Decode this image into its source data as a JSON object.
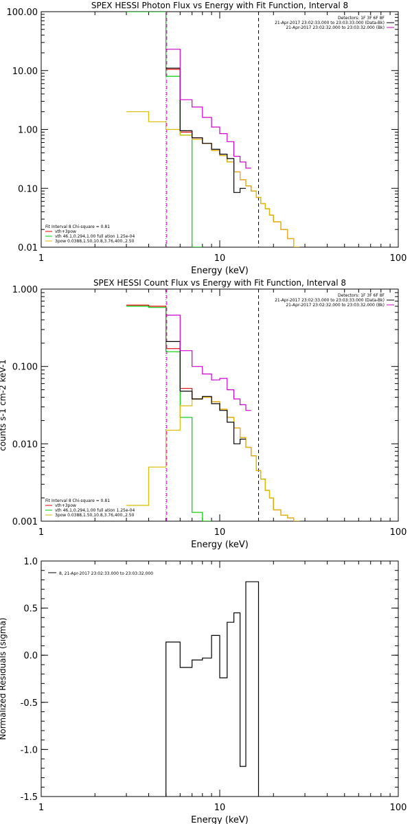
{
  "chart_data": [
    {
      "type": "line",
      "title": "SPEX HESSI Photon Flux vs Energy with Fit Function, Interval 8",
      "xlabel": "Energy (keV)",
      "ylabel": "",
      "xscale": "log",
      "yscale": "log",
      "xlim": [
        1,
        100
      ],
      "ylim": [
        0.01,
        100
      ],
      "xticks": [
        {
          "v": 1,
          "label": "1"
        },
        {
          "v": 10,
          "label": "10"
        },
        {
          "v": 100,
          "label": "100"
        }
      ],
      "yticks": [
        {
          "v": 0.01,
          "label": "0.01"
        },
        {
          "v": 0.1,
          "label": "0.10"
        },
        {
          "v": 1,
          "label": "1.00"
        },
        {
          "v": 10,
          "label": "10.00"
        },
        {
          "v": 100,
          "label": "100.00"
        }
      ],
      "edges": [
        3,
        4,
        5,
        6,
        7,
        8,
        9,
        10,
        11,
        12,
        13,
        14,
        15,
        16,
        17,
        18,
        19,
        20,
        22,
        24,
        26,
        28
      ],
      "vlines": [
        {
          "x": 5.0,
          "color": "#00aa00",
          "style": "dotted"
        },
        {
          "x": 5.05,
          "color": "#cc00cc",
          "style": "dashed"
        },
        {
          "x": 16.5,
          "color": "#000000",
          "style": "dashed"
        }
      ],
      "series": [
        {
          "name": "vth+3pow",
          "color": "#dd0000",
          "values": [
            null,
            null,
            10.5,
            0.9,
            0.72,
            0.58,
            0.44,
            0.36,
            0.28,
            0.19,
            0.14,
            0.11,
            0.09,
            0.07,
            0.055,
            0.045,
            0.035,
            0.027,
            0.02,
            0.014,
            0.01
          ]
        },
        {
          "name": "vth 46.1,0.294,1.00  full ation 1.25e-04",
          "color": "#00cc00",
          "values": [
            100,
            100,
            8.0,
            0.8,
            0.01,
            null,
            null,
            null,
            null,
            null,
            null,
            null,
            null,
            null,
            null,
            null,
            null,
            null,
            null,
            null,
            null
          ]
        },
        {
          "name": "3pow 0.0388,1.50,10.8,3.76,400.,2.50",
          "color": "#ddbb00",
          "values": [
            2.0,
            1.35,
            1.0,
            0.8,
            0.68,
            0.58,
            0.44,
            0.36,
            0.28,
            0.19,
            0.14,
            0.11,
            0.09,
            0.07,
            0.055,
            0.045,
            0.035,
            0.027,
            0.02,
            0.014,
            0.01
          ]
        },
        {
          "name": "data",
          "color": "#000000",
          "values": [
            null,
            null,
            11.0,
            0.95,
            0.72,
            0.58,
            0.46,
            0.38,
            0.32,
            0.085,
            0.1,
            null,
            null,
            null,
            null,
            null,
            null,
            null,
            null,
            null,
            null
          ]
        },
        {
          "name": "background",
          "color": "#cc00cc",
          "values": [
            null,
            null,
            23.0,
            3.2,
            2.4,
            1.6,
            1.1,
            0.85,
            0.62,
            0.35,
            0.28,
            0.22,
            null,
            null,
            null,
            null,
            null,
            null,
            null,
            null,
            null
          ]
        }
      ],
      "legend_top": [
        {
          "text": "Detectors: 1F 3F 6F 8F",
          "color": ""
        },
        {
          "text": "21-Apr-2017 23:02:33.000 to 23:03:33.000 (Data-Bk)",
          "color": "#000000"
        },
        {
          "text": "21-Apr-2017 23:02:32.000 to 23:03:32.000 (Bk)",
          "color": "#cc00cc"
        }
      ],
      "legend_bottom": [
        {
          "text": "Fit Interval 8   Chi-square = 0.81",
          "color": ""
        },
        {
          "text": "vth+3pow",
          "color": "#dd0000"
        },
        {
          "text": "vth 46.1,0.294,1.00  full ation 1.25e-04",
          "color": "#00cc00"
        },
        {
          "text": "3pow 0.0388,1.50,10.8,3.76,400.,2.50",
          "color": "#ddbb00"
        }
      ]
    },
    {
      "type": "line",
      "title": "SPEX HESSI Count Flux vs Energy with Fit Function, Interval 8",
      "xlabel": "Energy (keV)",
      "ylabel": "counts s-1 cm-2 keV-1",
      "xscale": "log",
      "yscale": "log",
      "xlim": [
        1,
        100
      ],
      "ylim": [
        0.001,
        1
      ],
      "xticks": [
        {
          "v": 1,
          "label": "1"
        },
        {
          "v": 10,
          "label": "10"
        },
        {
          "v": 100,
          "label": "100"
        }
      ],
      "yticks": [
        {
          "v": 0.001,
          "label": "0.001"
        },
        {
          "v": 0.01,
          "label": "0.010"
        },
        {
          "v": 0.1,
          "label": "0.100"
        },
        {
          "v": 1,
          "label": "1.000"
        }
      ],
      "edges": [
        3,
        4,
        5,
        6,
        7,
        8,
        9,
        10,
        11,
        12,
        13,
        14,
        15,
        16,
        17,
        18,
        19,
        20,
        22,
        24,
        26,
        28
      ],
      "vlines": [
        {
          "x": 5.0,
          "color": "#00aa00",
          "style": "dotted"
        },
        {
          "x": 5.05,
          "color": "#cc00cc",
          "style": "dashed"
        },
        {
          "x": 16.5,
          "color": "#000000",
          "style": "dashed"
        }
      ],
      "series": [
        {
          "name": "vth+3pow",
          "color": "#dd0000",
          "values": [
            0.62,
            0.6,
            0.17,
            0.052,
            0.038,
            0.04,
            0.035,
            0.028,
            0.022,
            0.016,
            0.012,
            0.009,
            0.007,
            0.0045,
            0.0035,
            0.0025,
            0.002,
            0.0014,
            0.0012,
            0.0011,
            0.001
          ]
        },
        {
          "name": "vth 46.1,0.294,1.00  full ation 1.25e-04",
          "color": "#00cc00",
          "values": [
            0.6,
            0.58,
            0.155,
            0.022,
            0.0013,
            0.001,
            null,
            null,
            null,
            null,
            null,
            null,
            null,
            null,
            null,
            null,
            null,
            null,
            null,
            null,
            null
          ]
        },
        {
          "name": "3pow 0.0388,1.50,10.8,3.76,400.,2.50",
          "color": "#ddbb00",
          "values": [
            0.0016,
            0.005,
            0.015,
            0.031,
            0.038,
            0.04,
            0.035,
            0.028,
            0.022,
            0.016,
            0.012,
            0.009,
            0.007,
            0.0045,
            0.0035,
            0.0025,
            0.002,
            0.0014,
            0.0012,
            0.0011,
            0.001
          ]
        },
        {
          "name": "data",
          "color": "#000000",
          "values": [
            null,
            null,
            0.21,
            0.048,
            0.038,
            0.041,
            0.033,
            0.027,
            0.019,
            0.01,
            0.0115,
            null,
            null,
            null,
            null,
            null,
            null,
            null,
            null,
            null,
            null
          ]
        },
        {
          "name": "background",
          "color": "#cc00cc",
          "values": [
            null,
            null,
            0.46,
            0.16,
            0.1,
            0.08,
            0.067,
            0.07,
            0.05,
            0.038,
            0.032,
            0.027,
            null,
            null,
            null,
            null,
            null,
            null,
            null,
            null,
            null
          ]
        }
      ],
      "legend_top": [
        {
          "text": "Detectors: 1F 3F 6F 8F",
          "color": ""
        },
        {
          "text": "21-Apr-2017 23:02:33.000 to 23:03:33.000 (Data-Bk)",
          "color": "#000000"
        },
        {
          "text": "21-Apr-2017 23:02:32.000 to 23:03:32.000 (Bk)",
          "color": "#cc00cc"
        }
      ],
      "legend_bottom": [
        {
          "text": "Fit Interval 8   Chi-square = 0.81",
          "color": ""
        },
        {
          "text": "vth+3pow",
          "color": "#dd0000"
        },
        {
          "text": "vth 46.1,0.294,1.00  full ation 1.25e-04",
          "color": "#00cc00"
        },
        {
          "text": "3pow 0.0388,1.50,10.8,3.76,400.,2.50",
          "color": "#ddbb00"
        }
      ]
    },
    {
      "type": "line",
      "title": "",
      "xlabel": "Energy (keV)",
      "ylabel": "Normalized Residuals (sigma)",
      "xscale": "log",
      "yscale": "linear",
      "xlim": [
        1,
        100
      ],
      "ylim": [
        -1.5,
        1.0
      ],
      "xticks": [
        {
          "v": 1,
          "label": "1"
        },
        {
          "v": 10,
          "label": "10"
        },
        {
          "v": 100,
          "label": "100"
        }
      ],
      "yticks": [
        {
          "v": -1.5,
          "label": "-1.5"
        },
        {
          "v": -1.0,
          "label": "-1.0"
        },
        {
          "v": -0.5,
          "label": "-0.5"
        },
        {
          "v": 0.0,
          "label": "0.0"
        },
        {
          "v": 0.5,
          "label": "0.5"
        },
        {
          "v": 1.0,
          "label": "1.0"
        }
      ],
      "edges": [
        5,
        6,
        7,
        8,
        9,
        10,
        11,
        12,
        13,
        14,
        15,
        16.5
      ],
      "baseline": -1.5,
      "vlines": [],
      "series": [
        {
          "name": "8, 21-Apr-2017 23:02:33.000 to 23:03:32.000",
          "color": "#000000",
          "values": [
            0.14,
            -0.13,
            -0.05,
            -0.03,
            0.21,
            -0.24,
            0.35,
            0.45,
            -1.18,
            0.78,
            0.78
          ]
        }
      ],
      "legend_top": [
        {
          "text": "8, 21-Apr-2017 23:02:33.000 to 23:03:32.000",
          "color": "#000000"
        }
      ],
      "legend_bottom": []
    }
  ]
}
